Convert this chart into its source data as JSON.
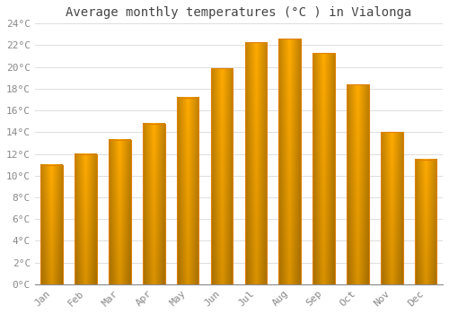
{
  "title": "Average monthly temperatures (°C ) in Vialonga",
  "months": [
    "Jan",
    "Feb",
    "Mar",
    "Apr",
    "May",
    "Jun",
    "Jul",
    "Aug",
    "Sep",
    "Oct",
    "Nov",
    "Dec"
  ],
  "values": [
    11.0,
    12.0,
    13.3,
    14.8,
    17.2,
    19.9,
    22.3,
    22.6,
    21.3,
    18.4,
    14.0,
    11.5
  ],
  "bar_color": "#FFAA00",
  "bar_edge_color": "#E08000",
  "background_color": "#FFFFFF",
  "grid_color": "#DDDDDD",
  "ylim": [
    0,
    24
  ],
  "yticks": [
    0,
    2,
    4,
    6,
    8,
    10,
    12,
    14,
    16,
    18,
    20,
    22,
    24
  ],
  "ytick_labels": [
    "0°C",
    "2°C",
    "4°C",
    "6°C",
    "8°C",
    "10°C",
    "12°C",
    "14°C",
    "16°C",
    "18°C",
    "20°C",
    "22°C",
    "24°C"
  ],
  "title_fontsize": 10,
  "tick_fontsize": 8,
  "font_family": "monospace",
  "bar_width": 0.65
}
